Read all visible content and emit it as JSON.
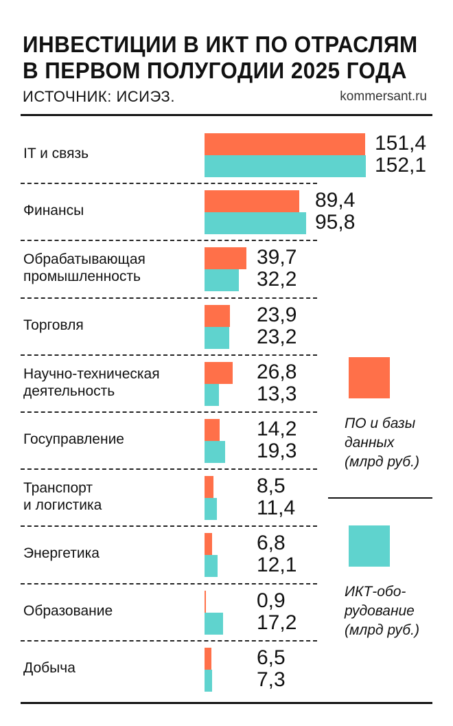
{
  "header": {
    "title_line1": "ИНВЕСТИЦИИ В ИКТ ПО ОТРАСЛЯМ",
    "title_line2": "В ПЕРВОМ ПОЛУГОДИИ 2025 ГОДА",
    "source": "ИСТОЧНИК: ИСИЭЗ.",
    "site": "kommersant.ru"
  },
  "chart_data": {
    "type": "bar",
    "orientation": "horizontal",
    "title": "ИНВЕСТИЦИИ В ИКТ ПО ОТРАСЛЯМ В ПЕРВОМ ПОЛУГОДИИ 2025 ГОДА",
    "categories": [
      "IT и связь",
      "Финансы",
      "Обрабатывающая промышленность",
      "Торговля",
      "Научно-техническая деятельность",
      "Госуправление",
      "Транспорт и логистика",
      "Энергетика",
      "Образование",
      "Добыча"
    ],
    "category_lines": [
      [
        "IT и связь"
      ],
      [
        "Финансы"
      ],
      [
        "Обрабатывающая",
        "промышленность"
      ],
      [
        "Торговля"
      ],
      [
        "Научно-техническая",
        "деятельность"
      ],
      [
        "Госуправление"
      ],
      [
        "Транспорт",
        "и логистика"
      ],
      [
        "Энергетика"
      ],
      [
        "Образование"
      ],
      [
        "Добыча"
      ]
    ],
    "series": [
      {
        "name": "ПО и базы данных (млрд руб.)",
        "legend_lines": [
          "ПО и базы",
          "данных",
          "(млрд руб.)"
        ],
        "color": "#FF7049",
        "values": [
          151.4,
          89.4,
          39.7,
          23.9,
          26.8,
          14.2,
          8.5,
          6.8,
          0.9,
          6.5
        ],
        "labels": [
          "151,4",
          "89,4",
          "39,7",
          "23,9",
          "26,8",
          "14,2",
          "8,5",
          "6,8",
          "0,9",
          "6,5"
        ]
      },
      {
        "name": "ИКТ-оборудование (млрд руб.)",
        "legend_lines": [
          "ИКТ-обо-",
          "рудование",
          "(млрд руб.)"
        ],
        "color": "#5FD3CE",
        "values": [
          152.1,
          95.8,
          32.2,
          23.2,
          13.3,
          19.3,
          11.4,
          12.1,
          17.2,
          7.3
        ],
        "labels": [
          "152,1",
          "95,8",
          "32,2",
          "23,2",
          "13,3",
          "19,3",
          "11,4",
          "12,1",
          "17,2",
          "7,3"
        ]
      }
    ],
    "unit": "млрд руб.",
    "legend_position": "right",
    "grid": false
  }
}
